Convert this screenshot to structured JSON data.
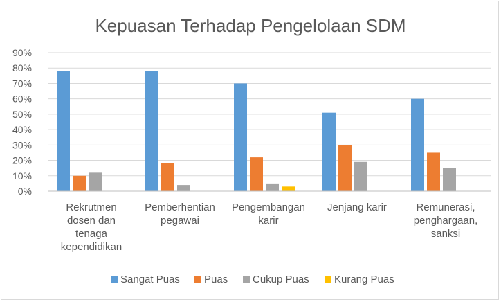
{
  "chart_data": {
    "type": "bar",
    "title": "Kepuasan Terhadap Pengelolaan SDM",
    "xlabel": "",
    "ylabel": "",
    "ylim": [
      0,
      90
    ],
    "yticks": [
      "0%",
      "10%",
      "20%",
      "30%",
      "40%",
      "50%",
      "60%",
      "70%",
      "80%",
      "90%"
    ],
    "grid": true,
    "legend_position": "bottom",
    "categories": [
      [
        "Rekrutmen",
        "dosen dan",
        "tenaga",
        "kependidikan"
      ],
      [
        "Pemberhentian",
        "pegawai"
      ],
      [
        "Pengembangan",
        "karir"
      ],
      [
        "Jenjang karir"
      ],
      [
        "Remunerasi,",
        "penghargaan,",
        "sanksi"
      ]
    ],
    "series": [
      {
        "name": "Sangat Puas",
        "color": "#5b9bd5",
        "values": [
          78,
          78,
          70,
          51,
          60
        ]
      },
      {
        "name": "Puas",
        "color": "#ed7d31",
        "values": [
          10,
          18,
          22,
          30,
          25
        ]
      },
      {
        "name": "Cukup Puas",
        "color": "#a5a5a5",
        "values": [
          12,
          4,
          5,
          19,
          15
        ]
      },
      {
        "name": "Kurang Puas",
        "color": "#ffc000",
        "values": [
          0,
          0,
          3,
          0,
          0
        ]
      }
    ]
  }
}
